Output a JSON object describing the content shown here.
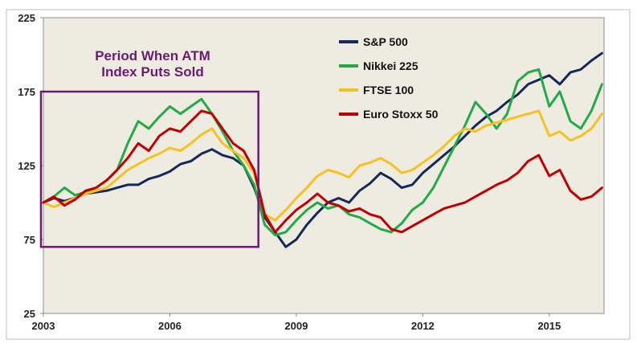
{
  "chart_data": {
    "type": "line",
    "title": "",
    "xlabel": "",
    "ylabel": "",
    "xlim": [
      2003,
      2016.3
    ],
    "ylim": [
      25,
      225
    ],
    "x_ticks": [
      2003,
      2006,
      2009,
      2012,
      2015
    ],
    "x_tick_labels": [
      "2003",
      "2006",
      "2009",
      "2012",
      "2015"
    ],
    "y_ticks": [
      25,
      75,
      125,
      175,
      225
    ],
    "y_tick_labels": [
      "25",
      "75",
      "125",
      "175",
      "225"
    ],
    "legend_position": "top-right",
    "background": "#eeebe0",
    "annotation": {
      "lines": [
        "Period When ATM",
        "Index Puts Sold"
      ],
      "color": "#6a1b6e",
      "x_range": [
        2003,
        2008.1
      ],
      "y_range": [
        70,
        175
      ]
    },
    "series": [
      {
        "name": "S&P 500",
        "color": "#14285a",
        "x": [
          2003.0,
          2003.25,
          2003.5,
          2003.75,
          2004.0,
          2004.25,
          2004.5,
          2004.75,
          2005.0,
          2005.25,
          2005.5,
          2005.75,
          2006.0,
          2006.25,
          2006.5,
          2006.75,
          2007.0,
          2007.25,
          2007.5,
          2007.75,
          2008.0,
          2008.25,
          2008.5,
          2008.75,
          2009.0,
          2009.25,
          2009.5,
          2009.75,
          2010.0,
          2010.25,
          2010.5,
          2010.75,
          2011.0,
          2011.25,
          2011.5,
          2011.75,
          2012.0,
          2012.25,
          2012.5,
          2012.75,
          2013.0,
          2013.25,
          2013.5,
          2013.75,
          2014.0,
          2014.25,
          2014.5,
          2014.75,
          2015.0,
          2015.25,
          2015.5,
          2015.75,
          2016.0,
          2016.25
        ],
        "values": [
          100,
          103,
          101,
          103,
          106,
          107,
          108,
          110,
          112,
          112,
          116,
          118,
          121,
          126,
          128,
          133,
          136,
          132,
          130,
          125,
          110,
          90,
          80,
          70,
          75,
          85,
          93,
          100,
          103,
          100,
          108,
          113,
          120,
          116,
          110,
          112,
          120,
          126,
          132,
          138,
          145,
          152,
          158,
          162,
          168,
          173,
          180,
          183,
          186,
          180,
          188,
          190,
          196,
          201
        ]
      },
      {
        "name": "Nikkei 225",
        "color": "#22aa44",
        "x": [
          2003.0,
          2003.25,
          2003.5,
          2003.75,
          2004.0,
          2004.25,
          2004.5,
          2004.75,
          2005.0,
          2005.25,
          2005.5,
          2005.75,
          2006.0,
          2006.25,
          2006.5,
          2006.75,
          2007.0,
          2007.25,
          2007.5,
          2007.75,
          2008.0,
          2008.25,
          2008.5,
          2008.75,
          2009.0,
          2009.25,
          2009.5,
          2009.75,
          2010.0,
          2010.25,
          2010.5,
          2010.75,
          2011.0,
          2011.25,
          2011.5,
          2011.75,
          2012.0,
          2012.25,
          2012.5,
          2012.75,
          2013.0,
          2013.25,
          2013.5,
          2013.75,
          2014.0,
          2014.25,
          2014.5,
          2014.75,
          2015.0,
          2015.25,
          2015.5,
          2015.75,
          2016.0,
          2016.25
        ],
        "values": [
          100,
          104,
          110,
          105,
          107,
          110,
          115,
          122,
          140,
          155,
          150,
          158,
          165,
          160,
          165,
          170,
          160,
          148,
          135,
          125,
          112,
          85,
          78,
          80,
          88,
          95,
          100,
          96,
          98,
          92,
          90,
          86,
          82,
          80,
          86,
          95,
          100,
          110,
          124,
          138,
          152,
          168,
          160,
          150,
          160,
          182,
          188,
          190,
          165,
          175,
          155,
          150,
          162,
          180
        ]
      },
      {
        "name": "FTSE 100",
        "color": "#f8c020",
        "x": [
          2003.0,
          2003.25,
          2003.5,
          2003.75,
          2004.0,
          2004.25,
          2004.5,
          2004.75,
          2005.0,
          2005.25,
          2005.5,
          2005.75,
          2006.0,
          2006.25,
          2006.5,
          2006.75,
          2007.0,
          2007.25,
          2007.5,
          2007.75,
          2008.0,
          2008.25,
          2008.5,
          2008.75,
          2009.0,
          2009.25,
          2009.5,
          2009.75,
          2010.0,
          2010.25,
          2010.5,
          2010.75,
          2011.0,
          2011.25,
          2011.5,
          2011.75,
          2012.0,
          2012.25,
          2012.5,
          2012.75,
          2013.0,
          2013.25,
          2013.5,
          2013.75,
          2014.0,
          2014.25,
          2014.5,
          2014.75,
          2015.0,
          2015.25,
          2015.5,
          2015.75,
          2016.0,
          2016.25
        ],
        "values": [
          100,
          97,
          100,
          103,
          106,
          108,
          110,
          116,
          122,
          126,
          130,
          133,
          137,
          135,
          140,
          146,
          150,
          140,
          135,
          130,
          120,
          92,
          88,
          95,
          103,
          110,
          118,
          122,
          120,
          117,
          125,
          127,
          130,
          126,
          120,
          122,
          127,
          132,
          138,
          145,
          150,
          148,
          152,
          154,
          156,
          158,
          160,
          162,
          145,
          148,
          142,
          145,
          150,
          160
        ]
      },
      {
        "name": "Euro Stoxx 50",
        "color": "#c00000",
        "x": [
          2003.0,
          2003.25,
          2003.5,
          2003.75,
          2004.0,
          2004.25,
          2004.5,
          2004.75,
          2005.0,
          2005.25,
          2005.5,
          2005.75,
          2006.0,
          2006.25,
          2006.5,
          2006.75,
          2007.0,
          2007.25,
          2007.5,
          2007.75,
          2008.0,
          2008.25,
          2008.5,
          2008.75,
          2009.0,
          2009.25,
          2009.5,
          2009.75,
          2010.0,
          2010.25,
          2010.5,
          2010.75,
          2011.0,
          2011.25,
          2011.5,
          2011.75,
          2012.0,
          2012.25,
          2012.5,
          2012.75,
          2013.0,
          2013.25,
          2013.5,
          2013.75,
          2014.0,
          2014.25,
          2014.5,
          2014.75,
          2015.0,
          2015.25,
          2015.5,
          2015.75,
          2016.0,
          2016.25
        ],
        "values": [
          100,
          104,
          98,
          102,
          108,
          110,
          115,
          122,
          130,
          140,
          135,
          145,
          150,
          148,
          155,
          162,
          160,
          150,
          140,
          135,
          122,
          92,
          80,
          88,
          95,
          100,
          106,
          100,
          98,
          94,
          96,
          92,
          90,
          82,
          80,
          84,
          88,
          92,
          96,
          98,
          100,
          104,
          108,
          112,
          115,
          120,
          128,
          132,
          118,
          122,
          108,
          102,
          104,
          110
        ]
      }
    ]
  }
}
